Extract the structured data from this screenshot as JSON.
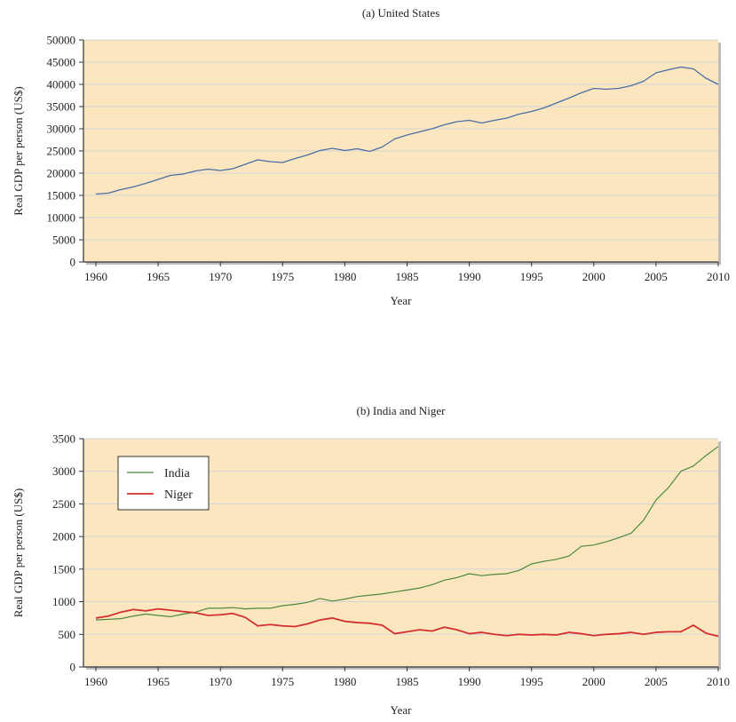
{
  "colors": {
    "plot_background": "#fbe6bf",
    "plot_border": "#333333",
    "gridline": "#d4d4d4",
    "us_line": "#4a6fa5",
    "india_line": "#4a8a3c",
    "niger_line": "#d32f2f"
  },
  "chart_data": [
    {
      "type": "line",
      "title": "(a) United States",
      "xlabel": "Year",
      "ylabel": "Real GDP  per person (US$)",
      "xlim": [
        1960,
        2010
      ],
      "ylim": [
        0,
        50000
      ],
      "xticks": [
        1960,
        1965,
        1970,
        1975,
        1980,
        1985,
        1990,
        1995,
        2000,
        2005,
        2010
      ],
      "yticks": [
        0,
        5000,
        10000,
        15000,
        20000,
        25000,
        30000,
        35000,
        40000,
        45000,
        50000
      ],
      "grid": "horizontal",
      "legend": null,
      "x": [
        1960,
        1961,
        1962,
        1963,
        1964,
        1965,
        1966,
        1967,
        1968,
        1969,
        1970,
        1971,
        1972,
        1973,
        1974,
        1975,
        1976,
        1977,
        1978,
        1979,
        1980,
        1981,
        1982,
        1983,
        1984,
        1985,
        1986,
        1987,
        1988,
        1989,
        1990,
        1991,
        1992,
        1993,
        1994,
        1995,
        1996,
        1997,
        1998,
        1999,
        2000,
        2001,
        2002,
        2003,
        2004,
        2005,
        2006,
        2007,
        2008,
        2009,
        2010
      ],
      "series": [
        {
          "color_key": "us_line",
          "values": [
            15300,
            15500,
            16300,
            16900,
            17700,
            18600,
            19500,
            19800,
            20500,
            20900,
            20600,
            21000,
            22000,
            23000,
            22600,
            22400,
            23300,
            24100,
            25100,
            25600,
            25100,
            25500,
            24900,
            25900,
            27700,
            28600,
            29300,
            30000,
            30900,
            31600,
            31900,
            31300,
            31900,
            32400,
            33300,
            33900,
            34700,
            35800,
            36900,
            38100,
            39100,
            38900,
            39100,
            39700,
            40700,
            42600,
            43300,
            43900,
            43500,
            41400,
            40000
          ]
        }
      ]
    },
    {
      "type": "line",
      "title": "(b) India and Niger",
      "xlabel": "Year",
      "ylabel": "Real GDP  per person (US$)",
      "xlim": [
        1960,
        2010
      ],
      "ylim": [
        0,
        3500
      ],
      "xticks": [
        1960,
        1965,
        1970,
        1975,
        1980,
        1985,
        1990,
        1995,
        2000,
        2005,
        2010
      ],
      "yticks": [
        0,
        500,
        1000,
        1500,
        2000,
        2500,
        3000,
        3500
      ],
      "grid": "horizontal",
      "legend": "top-left",
      "x": [
        1960,
        1961,
        1962,
        1963,
        1964,
        1965,
        1966,
        1967,
        1968,
        1969,
        1970,
        1971,
        1972,
        1973,
        1974,
        1975,
        1976,
        1977,
        1978,
        1979,
        1980,
        1981,
        1982,
        1983,
        1984,
        1985,
        1986,
        1987,
        1988,
        1989,
        1990,
        1991,
        1992,
        1993,
        1994,
        1995,
        1996,
        1997,
        1998,
        1999,
        2000,
        2001,
        2002,
        2003,
        2004,
        2005,
        2006,
        2007,
        2008,
        2009,
        2010
      ],
      "series": [
        {
          "name": "India",
          "color_key": "india_line",
          "values": [
            720,
            730,
            740,
            780,
            810,
            790,
            770,
            810,
            840,
            900,
            900,
            910,
            890,
            900,
            900,
            940,
            960,
            990,
            1050,
            1010,
            1040,
            1080,
            1100,
            1120,
            1150,
            1180,
            1210,
            1260,
            1330,
            1370,
            1430,
            1400,
            1420,
            1430,
            1480,
            1580,
            1620,
            1650,
            1700,
            1850,
            1870,
            1920,
            1980,
            2050,
            2250,
            2560,
            2750,
            3000,
            3080,
            3240,
            3380
          ],
          "line_width": 1.2
        },
        {
          "name": "Niger",
          "color_key": "niger_line",
          "values": [
            750,
            780,
            840,
            880,
            860,
            890,
            870,
            850,
            830,
            790,
            800,
            820,
            760,
            630,
            650,
            630,
            620,
            660,
            720,
            750,
            700,
            680,
            670,
            640,
            510,
            540,
            570,
            550,
            610,
            570,
            510,
            530,
            500,
            480,
            500,
            490,
            500,
            490,
            530,
            510,
            480,
            500,
            510,
            530,
            500,
            530,
            540,
            540,
            640,
            520,
            470
          ],
          "line_width": 1.8
        }
      ]
    }
  ]
}
